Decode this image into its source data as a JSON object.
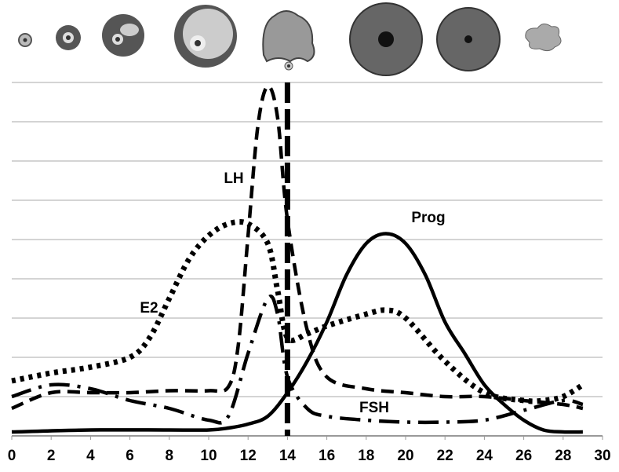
{
  "chart_data": {
    "type": "line",
    "xlim": [
      0,
      30
    ],
    "xticks": [
      0,
      2,
      4,
      6,
      8,
      10,
      12,
      14,
      16,
      18,
      20,
      22,
      24,
      26,
      28,
      30
    ],
    "ylim": [
      0,
      9
    ],
    "yticks": [
      1,
      2,
      3,
      4,
      5,
      6,
      7,
      8,
      9
    ],
    "grid": true,
    "vlines": [
      14
    ],
    "series": [
      {
        "name": "LH",
        "color": "#000000",
        "style": "dashed",
        "x": [
          0,
          2,
          4,
          6,
          8,
          10,
          11,
          11.5,
          12,
          12.5,
          13,
          13.5,
          14,
          15,
          16,
          18,
          20,
          22,
          24,
          26,
          28,
          29
        ],
        "values": [
          0.7,
          1.1,
          1.1,
          1.1,
          1.15,
          1.15,
          1.25,
          2.3,
          5.1,
          7.9,
          8.9,
          8.1,
          5.5,
          2.7,
          1.5,
          1.2,
          1.1,
          1.0,
          1.0,
          0.9,
          0.8,
          0.7
        ]
      },
      {
        "name": "E2",
        "color": "#000000",
        "style": "dotted",
        "x": [
          0,
          2,
          4,
          6,
          7,
          8,
          9,
          10,
          11,
          12,
          13,
          13.5,
          14,
          15,
          16,
          18,
          19,
          20,
          22,
          24,
          26,
          27,
          28,
          29
        ],
        "values": [
          1.4,
          1.6,
          1.75,
          2.0,
          2.5,
          3.5,
          4.5,
          5.1,
          5.4,
          5.4,
          4.9,
          3.7,
          2.5,
          2.6,
          2.8,
          3.1,
          3.2,
          3.0,
          1.9,
          1.1,
          0.9,
          0.9,
          1.0,
          1.3
        ]
      },
      {
        "name": "Prog",
        "color": "#000000",
        "style": "solid",
        "x": [
          0,
          4,
          8,
          10,
          11,
          12,
          13,
          14,
          15,
          16,
          17,
          18,
          19,
          20,
          21,
          22,
          23,
          24,
          25,
          26,
          27,
          28,
          29
        ],
        "values": [
          0.1,
          0.15,
          0.15,
          0.15,
          0.2,
          0.3,
          0.5,
          1.1,
          1.9,
          2.9,
          4.1,
          4.9,
          5.15,
          4.9,
          4.1,
          2.9,
          2.1,
          1.3,
          0.8,
          0.4,
          0.15,
          0.1,
          0.1
        ]
      },
      {
        "name": "FSH",
        "color": "#000000",
        "style": "dashdot",
        "x": [
          0,
          2,
          4,
          6,
          8,
          10,
          11,
          12,
          13,
          13.5,
          14,
          15,
          16,
          18,
          20,
          22,
          24,
          26,
          28,
          29
        ],
        "values": [
          1.0,
          1.3,
          1.2,
          0.9,
          0.7,
          0.4,
          0.5,
          2.1,
          3.5,
          3.1,
          1.5,
          0.7,
          0.5,
          0.4,
          0.35,
          0.35,
          0.4,
          0.65,
          0.9,
          0.8
        ]
      }
    ]
  }
}
